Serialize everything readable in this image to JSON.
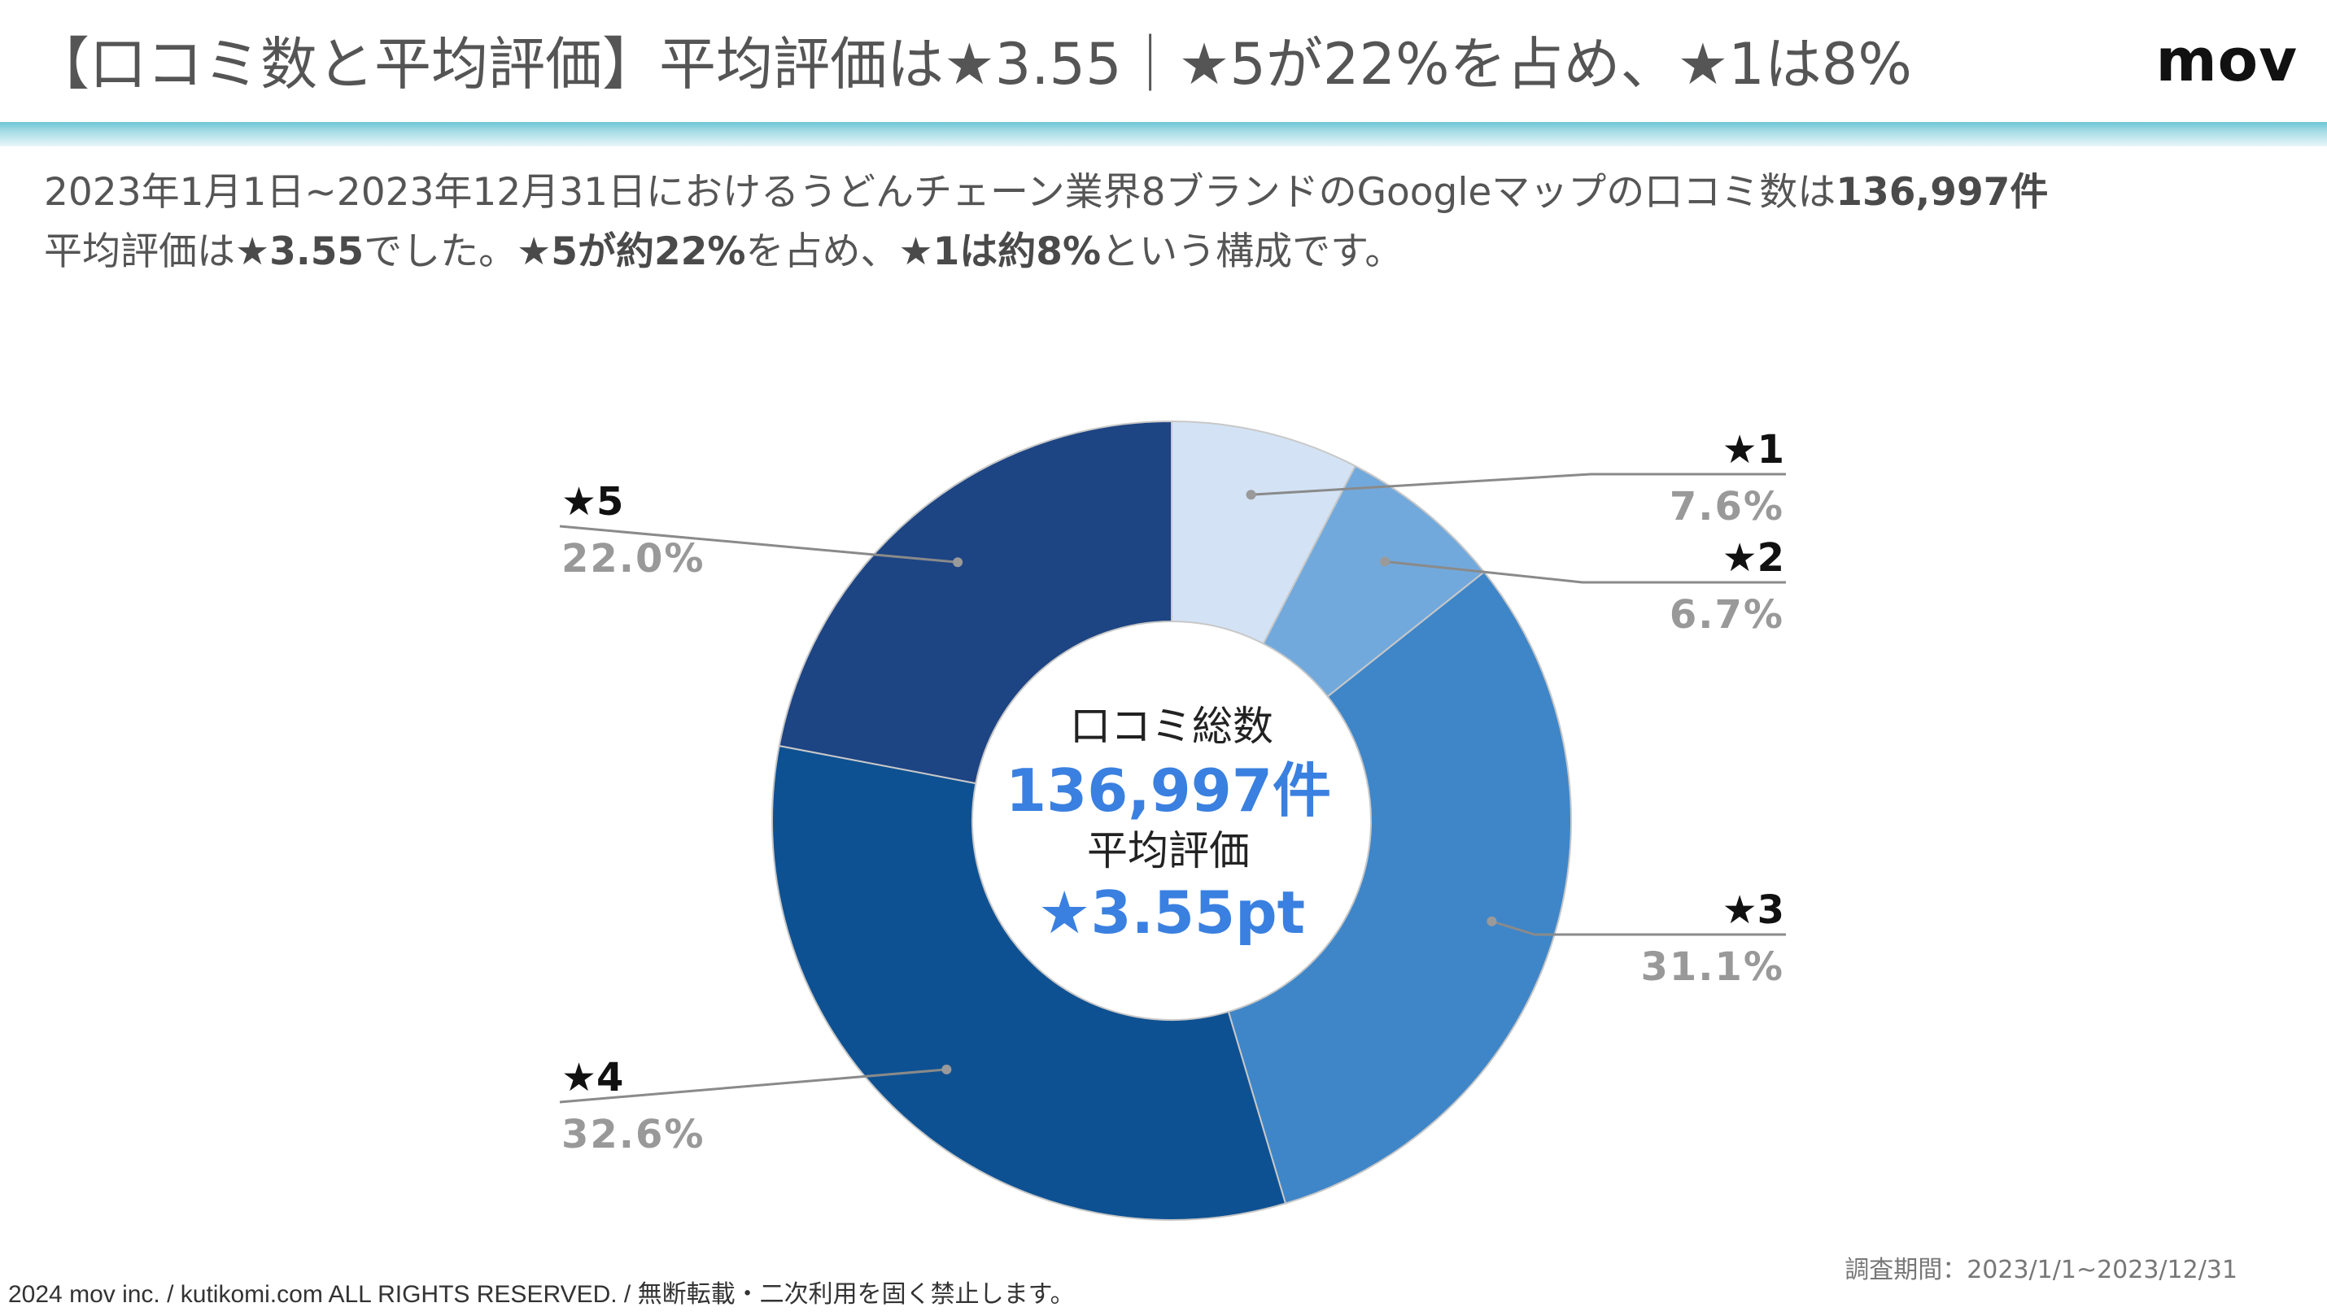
{
  "header": {
    "title": "【口コミ数と平均評価】平均評価は★3.55｜★5が22%を占め、★1は8%",
    "logo": "mov"
  },
  "summary": {
    "l1a": "2023年1月1日~2023年12月31日におけるうどんチェーン業界8ブランドのGoogleマップの口コミ数は",
    "l1b": "136,997件",
    "l2a": "平均評価は",
    "l2b": "★3.55",
    "l2c": "でした。",
    "l2d": "★5が約22%",
    "l2e": "を占め、",
    "l2f": "★1は約8%",
    "l2g": "という構成です。"
  },
  "center": {
    "label1": "口コミ総数",
    "value1": "136,997件",
    "label2": "平均評価",
    "value2": "★3.55pt"
  },
  "chart_data": {
    "type": "pie",
    "categories": [
      "★1",
      "★2",
      "★3",
      "★4",
      "★5"
    ],
    "values": [
      7.6,
      6.7,
      31.1,
      32.6,
      22.0
    ],
    "value_labels": [
      "7.6%",
      "6.7%",
      "31.1%",
      "32.6%",
      "22.0%"
    ],
    "colors": [
      "#d3e3f5",
      "#72a9dc",
      "#3f86c9",
      "#0e5192",
      "#1d4483"
    ],
    "donut": true,
    "legend": "labels beside slices"
  },
  "footer": {
    "copyright": "2024 mov inc. / kutikomi.com ALL RIGHTS RESERVED. / 無断転載・二次利用を固く禁止します。",
    "period": "調査期間：2023/1/1~2023/12/31"
  }
}
